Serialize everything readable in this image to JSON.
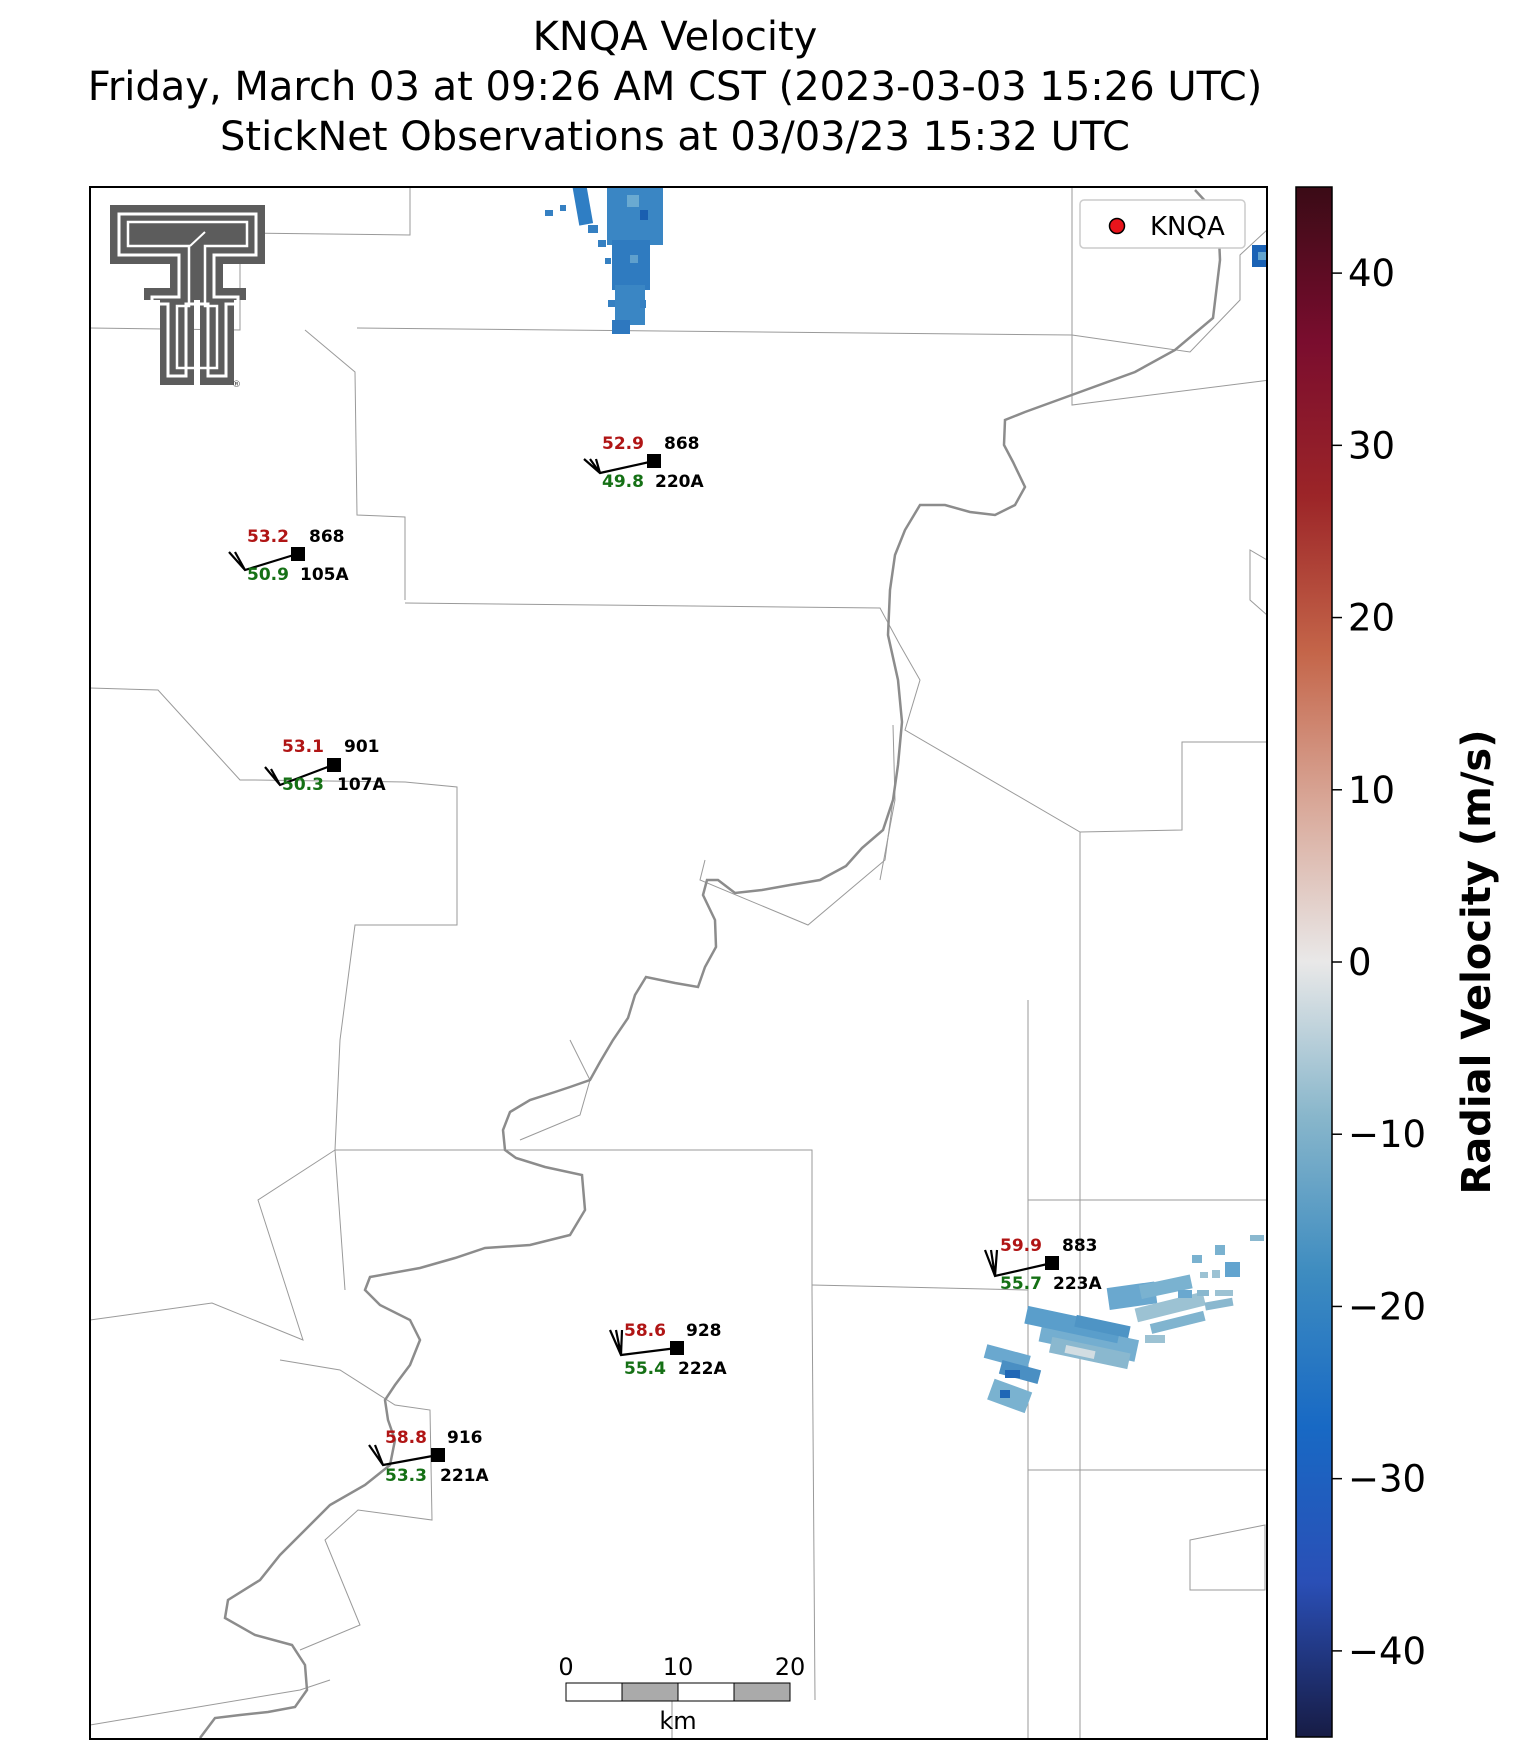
{
  "titles": {
    "line1": "KNQA Velocity",
    "line2": "Friday, March 03 at 09:26 AM CST (2023-03-03 15:26 UTC)",
    "line3": "StickNet Observations at 03/03/23 15:32 UTC"
  },
  "legend": {
    "label": "KNQA",
    "marker_color": "#e8141b"
  },
  "colorbar": {
    "label": "Radial Velocity (m/s)",
    "vmin": -45,
    "vmax": 45,
    "ticks": [
      {
        "value": -40,
        "label": "−40"
      },
      {
        "value": -30,
        "label": "−30"
      },
      {
        "value": -20,
        "label": "−20"
      },
      {
        "value": -10,
        "label": "−10"
      },
      {
        "value": 0,
        "label": "0"
      },
      {
        "value": 10,
        "label": "10"
      },
      {
        "value": 20,
        "label": "20"
      },
      {
        "value": 30,
        "label": "30"
      },
      {
        "value": 40,
        "label": "40"
      }
    ],
    "colors": [
      "#171c45",
      "#2a4fb6",
      "#1869c4",
      "#3e8cc0",
      "#88b6cb",
      "#e9e8e8",
      "#d9a99a",
      "#c46549",
      "#9c2528",
      "#7a0d2e",
      "#3a0b16"
    ]
  },
  "scale_bar": {
    "unit": "km",
    "labels": [
      "0",
      "10",
      "20"
    ]
  },
  "logo": {
    "name": "Texas Tech Double T",
    "mark": "®"
  },
  "stations": [
    {
      "id": "220A",
      "temp": "52.9",
      "pressure": "868",
      "dewpoint": "49.8"
    },
    {
      "id": "105A",
      "temp": "53.2",
      "pressure": "868",
      "dewpoint": "50.9"
    },
    {
      "id": "107A",
      "temp": "53.1",
      "pressure": "901",
      "dewpoint": "50.3"
    },
    {
      "id": "223A",
      "temp": "59.9",
      "pressure": "883",
      "dewpoint": "55.7"
    },
    {
      "id": "222A",
      "temp": "58.6",
      "pressure": "928",
      "dewpoint": "55.4"
    },
    {
      "id": "221A",
      "temp": "58.8",
      "pressure": "916",
      "dewpoint": "53.3"
    }
  ],
  "colors": {
    "temp_text": "#b01515",
    "dew_text": "#157015",
    "obs_text": "#000000"
  }
}
